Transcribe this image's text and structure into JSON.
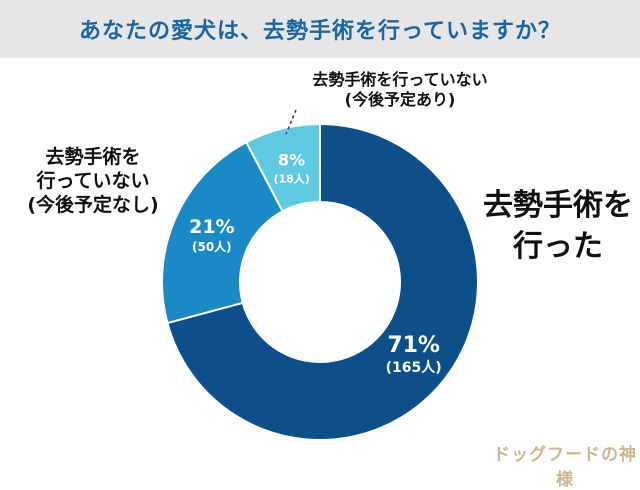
{
  "header": {
    "title": "あなたの愛犬は、去勢手術を行っていますか？"
  },
  "chart_data": {
    "type": "pie",
    "title": "あなたの愛犬は、去勢手術を行っていますか？",
    "slices": [
      {
        "label_lines": [
          "去勢手術を",
          "行った"
        ],
        "percent_label": "71%",
        "count_label": "(165人)",
        "value": 165,
        "color": "#0d4f8b"
      },
      {
        "label_lines": [
          "去勢手術を",
          "行っていない",
          "(今後予定なし)"
        ],
        "percent_label": "21%",
        "count_label": "(50人)",
        "value": 50,
        "color": "#1a8ac6"
      },
      {
        "label_lines": [
          "去勢手術を行っていない",
          "(今後予定あり)"
        ],
        "percent_label": "8%",
        "count_label": "(18人)",
        "value": 18,
        "color": "#5fc9e0"
      }
    ]
  },
  "watermark": {
    "text": "ドッグフードの神様"
  }
}
